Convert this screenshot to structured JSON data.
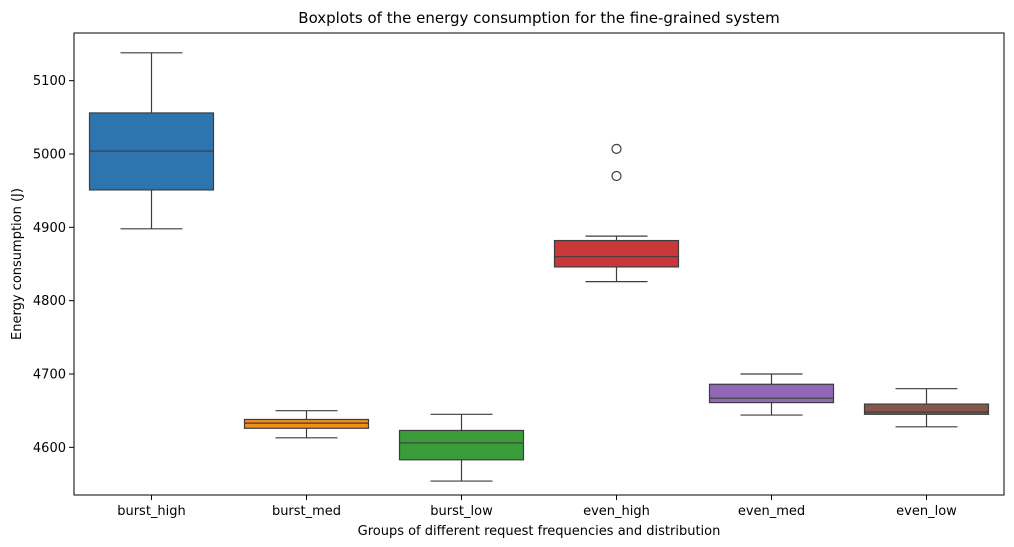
{
  "chart_data": {
    "type": "boxplot",
    "title": "Boxplots of the energy consumption for the fine-grained system",
    "xlabel": "Groups of different request frequencies and distribution",
    "ylabel": "Energy consumption (J)",
    "ylim": [
      4535,
      5165
    ],
    "yticks": [
      4600,
      4700,
      4800,
      4900,
      5000,
      5100
    ],
    "grid": false,
    "categories": [
      "burst_high",
      "burst_med",
      "burst_low",
      "even_high",
      "even_med",
      "even_low"
    ],
    "boxes": [
      {
        "category": "burst_high",
        "whisker_low": 4898,
        "q1": 4951,
        "median": 5004,
        "q3": 5056,
        "whisker_high": 5138,
        "outliers": [],
        "color": "#2e75b0"
      },
      {
        "category": "burst_med",
        "whisker_low": 4613,
        "q1": 4626,
        "median": 4633,
        "q3": 4638,
        "whisker_high": 4650,
        "outliers": [],
        "color": "#f28e1c"
      },
      {
        "category": "burst_low",
        "whisker_low": 4554,
        "q1": 4583,
        "median": 4606,
        "q3": 4623,
        "whisker_high": 4645,
        "outliers": [],
        "color": "#3a9d3a"
      },
      {
        "category": "even_high",
        "whisker_low": 4826,
        "q1": 4846,
        "median": 4860,
        "q3": 4882,
        "whisker_high": 4888,
        "outliers": [
          4970,
          5007
        ],
        "color": "#c93838"
      },
      {
        "category": "even_med",
        "whisker_low": 4644,
        "q1": 4661,
        "median": 4667,
        "q3": 4686,
        "whisker_high": 4700,
        "outliers": [],
        "color": "#9168b8"
      },
      {
        "category": "even_low",
        "whisker_low": 4628,
        "q1": 4645,
        "median": 4648,
        "q3": 4659,
        "whisker_high": 4680,
        "outliers": [],
        "color": "#85574c"
      }
    ]
  }
}
